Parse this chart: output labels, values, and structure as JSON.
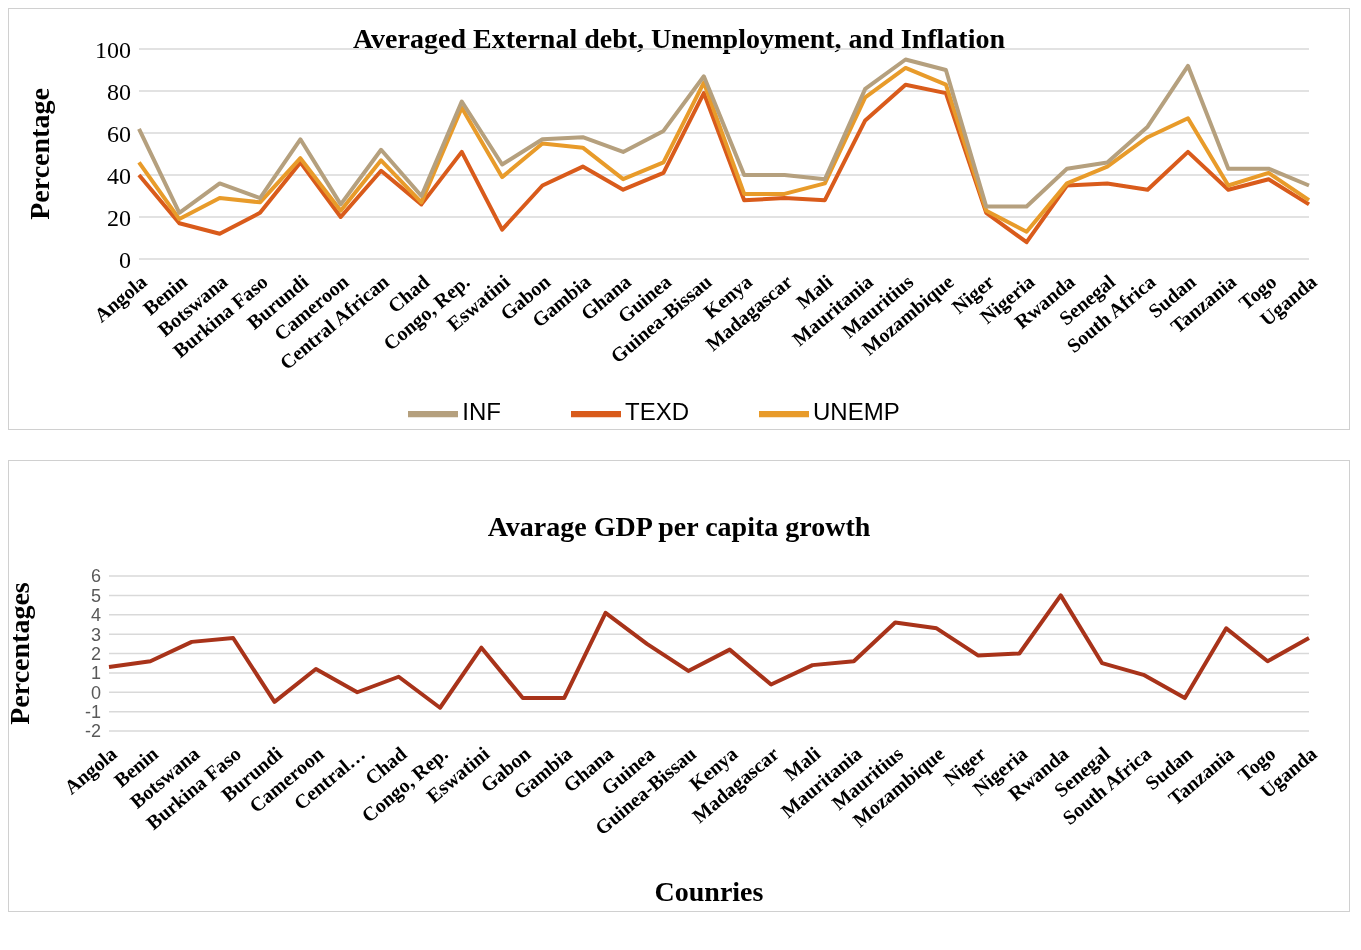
{
  "chart_data": [
    {
      "type": "line",
      "title": "Averaged External debt, Unemployment, and Inflation",
      "ylabel": "Percentage",
      "categories": [
        "Angola",
        "Benin",
        "Botswana",
        "Burkina Faso",
        "Burundi",
        "Cameroon",
        "Central African",
        "Chad",
        "Congo, Rep.",
        "Eswatini",
        "Gabon",
        "Gambia",
        "Ghana",
        "Guinea",
        "Guinea-Bissau",
        "Kenya",
        "Madagascar",
        "Mali",
        "Mauritania",
        "Mauritius",
        "Mozambique",
        "Niger",
        "Nigeria",
        "Rwanda",
        "Senegal",
        "South Africa",
        "Sudan",
        "Tanzania",
        "Togo",
        "Uganda"
      ],
      "series": [
        {
          "name": "TEXD",
          "color": "#d95b1b",
          "values": [
            40,
            17,
            12,
            22,
            46,
            20,
            42,
            26,
            51,
            14,
            35,
            44,
            33,
            41,
            79,
            28,
            29,
            28,
            66,
            83,
            79,
            22,
            8,
            35,
            36,
            33,
            51,
            33,
            38,
            26
          ]
        },
        {
          "name": "UNEMP",
          "color": "#e89b2a",
          "values": [
            46,
            19,
            29,
            27,
            48,
            23,
            47,
            27,
            72,
            39,
            55,
            53,
            38,
            46,
            84,
            31,
            31,
            36,
            77,
            91,
            83,
            23,
            13,
            36,
            44,
            58,
            67,
            35,
            41,
            28
          ]
        },
        {
          "name": "INF",
          "color": "#b5a07e",
          "values": [
            62,
            22,
            36,
            29,
            57,
            26,
            52,
            30,
            75,
            45,
            57,
            58,
            51,
            61,
            87,
            40,
            40,
            38,
            81,
            95,
            90,
            25,
            25,
            43,
            46,
            63,
            92,
            43,
            43,
            35
          ]
        }
      ],
      "ylim": [
        0,
        100
      ],
      "yticks": [
        0,
        20,
        40,
        60,
        80,
        100
      ],
      "grid": "y",
      "legend": "bottom",
      "marker": "none"
    },
    {
      "type": "line",
      "title": "Avarage GDP per capita growth",
      "xlabel": "Counries",
      "ylabel": "Percentages",
      "categories": [
        "Angola",
        "Benin",
        "Botswana",
        "Burkina Faso",
        "Burundi",
        "Cameroon",
        "Central…",
        "Chad",
        "Congo, Rep.",
        "Eswatini",
        "Gabon",
        "Gambia",
        "Ghana",
        "Guinea",
        "Guinea-Bissau",
        "Kenya",
        "Madagascar",
        "Mali",
        "Mauritania",
        "Mauritius",
        "Mozambique",
        "Niger",
        "Nigeria",
        "Rwanda",
        "Senegal",
        "South Africa",
        "Sudan",
        "Tanzania",
        "Togo",
        "Uganda"
      ],
      "series": [
        {
          "color": "#a8331a",
          "values": [
            1.3,
            1.6,
            2.6,
            2.8,
            -0.5,
            1.2,
            0.0,
            0.8,
            -0.8,
            2.3,
            -0.3,
            -0.3,
            4.1,
            2.5,
            1.1,
            2.2,
            0.4,
            1.4,
            1.6,
            3.6,
            3.3,
            1.9,
            2.0,
            5.0,
            1.5,
            0.9,
            -0.3,
            3.3,
            1.6,
            2.8
          ]
        }
      ],
      "ylim": [
        -2,
        6
      ],
      "yticks": [
        -2,
        -1,
        0,
        1,
        2,
        3,
        4,
        5,
        6
      ],
      "grid": "y",
      "marker": "none"
    }
  ]
}
